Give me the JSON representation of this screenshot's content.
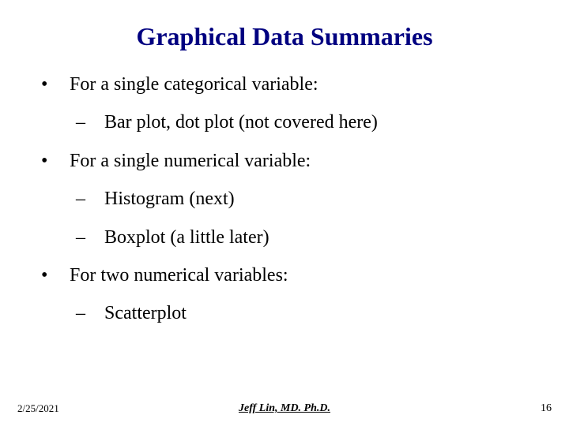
{
  "slide": {
    "title": "Graphical Data Summaries",
    "title_color": "#000080",
    "text_color": "#000000",
    "background_color": "#ffffff",
    "font_family": "Times New Roman",
    "title_fontsize": 32,
    "body_fontsize": 24,
    "bullets": [
      {
        "level": 1,
        "marker": "•",
        "text": "For a single categorical variable:"
      },
      {
        "level": 2,
        "marker": "–",
        "text": "Bar plot, dot plot (not covered here)"
      },
      {
        "level": 1,
        "marker": "•",
        "text": "For a single numerical variable:"
      },
      {
        "level": 2,
        "marker": "–",
        "text": "Histogram (next)"
      },
      {
        "level": 2,
        "marker": "–",
        "text": "Boxplot (a little later)"
      },
      {
        "level": 1,
        "marker": "•",
        "text": "For two numerical variables:"
      },
      {
        "level": 2,
        "marker": "–",
        "text": "Scatterplot"
      }
    ]
  },
  "footer": {
    "date": "2/25/2021",
    "author": "Jeff Lin, MD. Ph.D.",
    "page_number": "16",
    "footer_fontsize": 13
  }
}
